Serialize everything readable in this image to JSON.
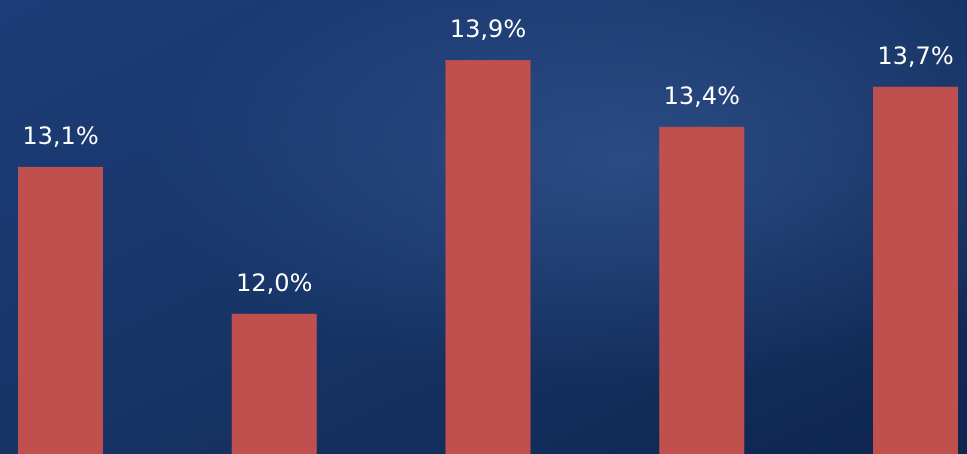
{
  "chart_data": {
    "type": "bar",
    "categories": [
      null,
      null,
      null,
      null,
      null
    ],
    "values": [
      13.1,
      12.0,
      13.9,
      13.4,
      13.7
    ],
    "value_labels": [
      "13,1%",
      "12,0%",
      "13,9%",
      "13,4%",
      "13,7%"
    ],
    "color": "#c0504d",
    "ylim": [
      10.95,
      14.35
    ]
  }
}
